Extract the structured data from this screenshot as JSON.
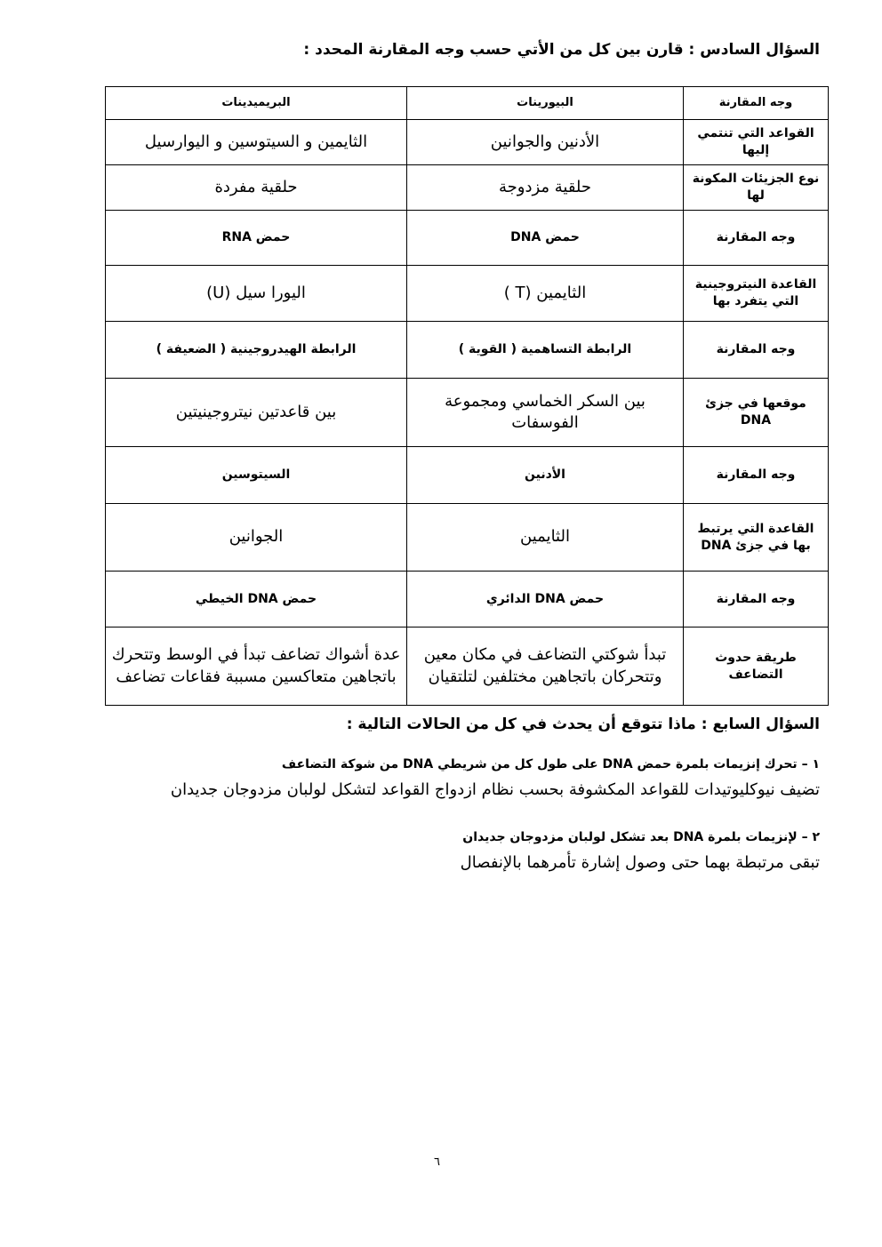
{
  "q6": {
    "title": "السؤال السادس : قارن بين كل من الأتي حسب وجه المقارنة المحدد :",
    "rows": [
      {
        "label": "وجه المقارنة",
        "mid": "البيورينات",
        "left": "البريميدينات",
        "style": "hdr"
      },
      {
        "label": "القواعد التي تنتمي إليها",
        "mid": "الأدنين والجوانين",
        "left": "الثايمين و السيتوسين و اليوارسيل",
        "style": "norm"
      },
      {
        "label": "نوع الجزيئات المكونة لها",
        "mid": "حلقية مزدوجة",
        "left": "حلقية مفردة",
        "style": "norm"
      },
      {
        "label": "وجه المقارنة",
        "mid": "حمض DNA",
        "left": "حمض RNA",
        "style": "bold"
      },
      {
        "label": "القاعدة النيتروجينية التي يتفرد بها",
        "mid": "الثايمين (T )",
        "left": "اليورا سيل (U)",
        "style": "norm"
      },
      {
        "label": "وجه المقارنة",
        "mid": "الرابطة التساهمية ( القوية )",
        "left": "الرابطة الهيدروجينية ( الضعيفة )",
        "style": "bold"
      },
      {
        "label": "موقعها في جزئ DNA",
        "mid": "بين السكر الخماسي ومجموعة الفوسفات",
        "left": "بين قاعدتين نيتروجينيتين",
        "style": "norm"
      },
      {
        "label": "وجه المقارنة",
        "mid": "الأدنين",
        "left": "السيتوسين",
        "style": "bold"
      },
      {
        "label": "القاعدة التي يرتبط بها في جزئ DNA",
        "mid": "الثايمين",
        "left": "الجوانين",
        "style": "norm"
      },
      {
        "label": "وجه المقارنة",
        "mid": "حمض DNA الدائري",
        "left": "حمض DNA الخيطي",
        "style": "bold"
      },
      {
        "label": "طريقة حدوث التضاعف",
        "mid": "تبدأ شوكتي التضاعف في مكان معين وتتحركان باتجاهين مختلفين لتلتقيان",
        "left": "عدة أشواك تضاعف تبدأ في الوسط وتتحرك باتجاهين متعاكسين مسببة فقاعات تضاعف",
        "style": "norm"
      }
    ]
  },
  "q7": {
    "title": "السؤال السابع : ماذا تتوقع أن يحدث في كل من الحالات التالية :",
    "items": [
      {
        "question": "١ – تحرك إنزيمات بلمرة حمض DNA على طول كل من شريطي DNA من شوكة التضاعف",
        "answer": "تضيف نيوكليوتيدات للقواعد المكشوفة بحسب نظام ازدواج القواعد لتشكل لولبان مزدوجان جديدان"
      },
      {
        "question": "٢ – لإنزيمات بلمرة DNA بعد تشكل لولبان مزدوجان جديدان",
        "answer": "تبقى مرتبطة بهما حتى وصول إشارة تأمرهما بالإنفصال"
      }
    ]
  },
  "page_number": "٦"
}
